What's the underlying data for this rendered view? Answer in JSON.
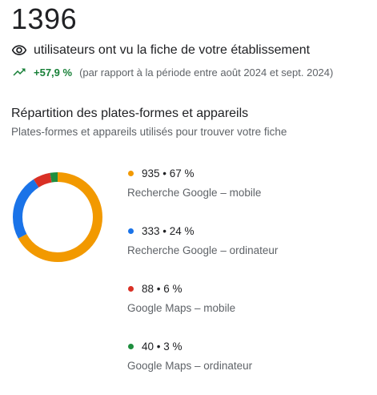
{
  "total": "1396",
  "views_text": "utilisateurs ont vu la fiche de votre établissement",
  "delta": "+57,9 %",
  "delta_note": "(par rapport à la période entre août 2024 et sept. 2024)",
  "section": {
    "title": "Répartition des plates-formes et appareils",
    "subtitle": "Plates-formes et appareils utilisés pour trouver votre fiche"
  },
  "icons": {
    "views": "eye-icon",
    "trend": "trending-up-icon"
  },
  "colors": {
    "positive": "#188038",
    "muted": "#5f6368"
  },
  "chart_data": {
    "type": "pie",
    "donut": true,
    "categories": [
      "Recherche Google – mobile",
      "Recherche Google – ordinateur",
      "Google Maps – mobile",
      "Google Maps – ordinateur"
    ],
    "values": [
      935,
      333,
      88,
      40
    ],
    "percents": [
      67,
      24,
      6,
      3
    ],
    "colors": [
      "#f29900",
      "#1a73e8",
      "#d93025",
      "#1e8e3e"
    ],
    "legend": [
      {
        "value_text": "935 • 67 %",
        "label": "Recherche Google – mobile"
      },
      {
        "value_text": "333 • 24 %",
        "label": "Recherche Google – ordinateur"
      },
      {
        "value_text": "88 • 6 %",
        "label": "Google Maps – mobile"
      },
      {
        "value_text": "40 • 3 %",
        "label": "Google Maps – ordinateur"
      }
    ]
  }
}
